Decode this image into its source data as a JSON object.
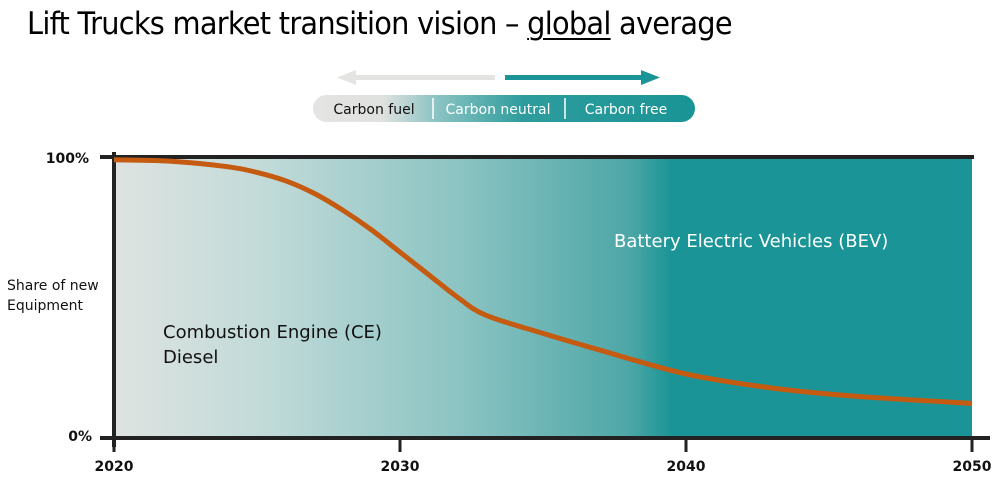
{
  "title": {
    "prefix": "Lift Trucks market transition vision – ",
    "underlined": "global",
    "suffix": " average"
  },
  "transition_bar": {
    "segments": [
      "Carbon fuel",
      "Carbon neutral",
      "Carbon free"
    ],
    "arrow_left_color": "#e4e4e2",
    "arrow_right_color": "#1a9496"
  },
  "colors": {
    "start_gradient": "#dfe3e1",
    "end_gradient": "#1a9496",
    "curve": "#c55a11",
    "axis": "#222222"
  },
  "chart_data": {
    "type": "area",
    "title": "Lift Trucks market transition vision – global average",
    "xlabel": "",
    "ylabel": "Share of new Equipment",
    "xlim": [
      2020,
      2050
    ],
    "ylim": [
      0,
      100
    ],
    "x_ticks": [
      "2020",
      "2030",
      "2040",
      "2050"
    ],
    "y_ticks": [
      "0%",
      "100%"
    ],
    "grid": false,
    "series": [
      {
        "name": "Combustion Engine (CE) Diesel",
        "x": [
          2020,
          2022,
          2024,
          2025,
          2026,
          2027,
          2028,
          2029,
          2030,
          2031,
          2032,
          2033,
          2035,
          2037,
          2040,
          2043,
          2046,
          2050
        ],
        "values": [
          99,
          98.5,
          96.5,
          94.5,
          91.5,
          87,
          81,
          74,
          66,
          58,
          50,
          43.5,
          37,
          31,
          22.5,
          17.5,
          14.5,
          12
        ]
      },
      {
        "name": "Battery Electric Vehicles (BEV)",
        "note": "remaining share above CE curve"
      }
    ],
    "annotations": [
      {
        "text": "Combustion Engine (CE)",
        "line2": "Diesel"
      },
      {
        "text": "Battery Electric Vehicles (BEV)"
      }
    ]
  }
}
